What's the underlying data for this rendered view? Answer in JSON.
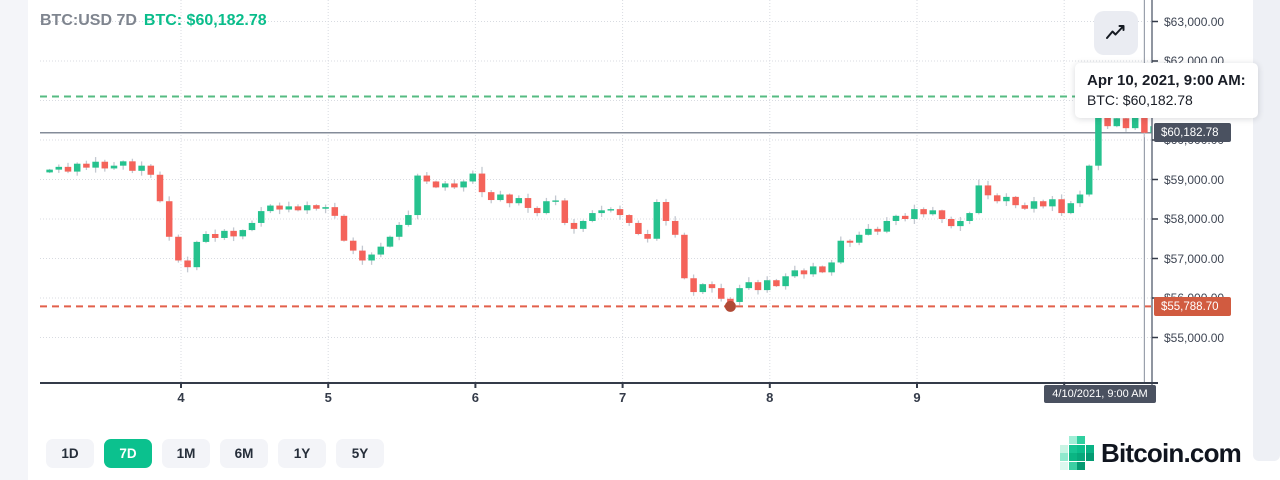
{
  "page": {
    "background": "#ffffff",
    "left_strip_color": "#f4f5f9",
    "right_strip_color": "#eef0f5"
  },
  "header": {
    "symbol_label": "BTC:USD 7D",
    "price_label": "BTC: $60,182.78",
    "symbol_color": "#7f858f",
    "price_color": "#0abd8b"
  },
  "toolbar": {
    "chart_type_icon": "line-chart-icon"
  },
  "tooltip": {
    "title": "Apr 10, 2021, 9:00 AM:",
    "value": "BTC: $60,182.78"
  },
  "axis_badges": {
    "current_price": {
      "text": "$60,182.78",
      "bg": "#4a5160"
    },
    "low_price": {
      "text": "$55,788.70",
      "bg": "#d15b40"
    },
    "date": {
      "text": "4/10/2021, 9:00 AM",
      "bg": "#4a5160"
    }
  },
  "range_buttons": [
    {
      "label": "1D",
      "selected": false
    },
    {
      "label": "7D",
      "selected": true
    },
    {
      "label": "1M",
      "selected": false
    },
    {
      "label": "6M",
      "selected": false
    },
    {
      "label": "1Y",
      "selected": false
    },
    {
      "label": "5Y",
      "selected": false
    }
  ],
  "footer_logo": {
    "text": "Bitcoin.com",
    "mark_icon": "bitcoin-com-pixel-flag-icon"
  },
  "chart_data": {
    "type": "candlestick",
    "symbol": "BTC:USD",
    "range": "7D",
    "title": "BTC:USD 7D",
    "current": {
      "time": "Apr 10, 2021, 9:00 AM",
      "price": 60182.78
    },
    "low_marker": {
      "index": 74,
      "price": 55788.7,
      "axis_label": "$55,788.70"
    },
    "reference_lines": [
      {
        "name": "upper-dashed",
        "value": 61100,
        "style": "dashed",
        "color": "#55bb82"
      },
      {
        "name": "low-dashed",
        "value": 55788.7,
        "style": "dashed",
        "color": "#e2604b"
      },
      {
        "name": "current-price",
        "value": 60182.78,
        "style": "solid",
        "color": "#848c99"
      }
    ],
    "x_ticks": [
      "4",
      "5",
      "6",
      "7",
      "8",
      "9"
    ],
    "y_ticks": [
      {
        "label": "$55,000.00",
        "value": 55000
      },
      {
        "label": "$56,000.00",
        "value": 56000
      },
      {
        "label": "$57,000.00",
        "value": 57000
      },
      {
        "label": "$58,000.00",
        "value": 58000
      },
      {
        "label": "$59,000.00",
        "value": 59000
      },
      {
        "label": "$60,000.00",
        "value": 60000
      },
      {
        "label": "$61,000.00",
        "value": 61000
      },
      {
        "label": "$62,000.00",
        "value": 62000
      },
      {
        "label": "$63,000.00",
        "value": 63000
      }
    ],
    "up_color": "#26c28e",
    "down_color": "#f4635a",
    "wick_color": "#c3c8d0",
    "first_open": 59180,
    "closes": [
      59250,
      59320,
      59200,
      59400,
      59300,
      59450,
      59280,
      59350,
      59460,
      59220,
      59350,
      59120,
      58450,
      57550,
      56950,
      56780,
      57420,
      57620,
      57520,
      57700,
      57560,
      57720,
      57900,
      58200,
      58340,
      58240,
      58320,
      58220,
      58350,
      58260,
      58300,
      58080,
      57450,
      57200,
      56950,
      57100,
      57300,
      57550,
      57850,
      58100,
      59100,
      58950,
      58800,
      58900,
      58800,
      58950,
      59150,
      58680,
      58480,
      58620,
      58400,
      58530,
      58280,
      58150,
      58450,
      58470,
      57900,
      57750,
      57950,
      58150,
      58220,
      58250,
      58100,
      57900,
      57620,
      57500,
      58430,
      57950,
      57600,
      56500,
      56150,
      56350,
      56250,
      55980,
      55900,
      56250,
      56400,
      56200,
      56450,
      56300,
      56550,
      56700,
      56600,
      56800,
      56650,
      56900,
      57450,
      57400,
      57600,
      57750,
      57680,
      57950,
      58080,
      58000,
      58250,
      58120,
      58220,
      58000,
      57820,
      57950,
      58150,
      58850,
      58600,
      58450,
      58560,
      58350,
      58260,
      58450,
      58320,
      58500,
      58150,
      58400,
      58620,
      59350,
      60650,
      60350,
      60550,
      60300,
      60600,
      60182.78,
      60350
    ],
    "wick_overrides": {
      "15": {
        "low": 56650
      },
      "34": {
        "low": 56840
      },
      "47": {
        "high": 59320
      },
      "66": {
        "high": 58500
      },
      "74": {
        "low": 55788.7
      },
      "101": {
        "high": 59000
      },
      "114": {
        "high": 60720
      },
      "118": {
        "high": 60780
      },
      "119": {
        "high": 60650
      }
    }
  }
}
